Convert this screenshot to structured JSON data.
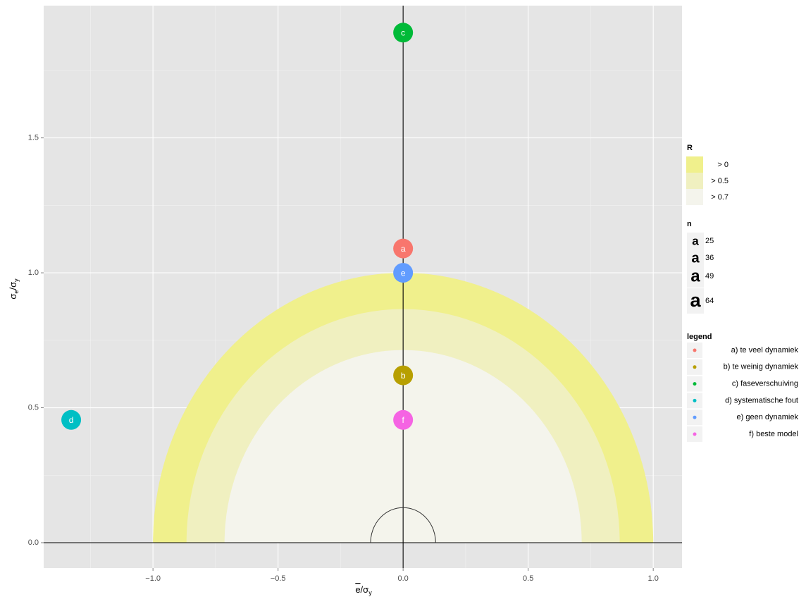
{
  "chart_data": {
    "type": "scatter",
    "x_label": [
      "e",
      "/σ",
      "y"
    ],
    "y_label": [
      "σ",
      "e",
      "/σ",
      "y"
    ],
    "xlim": [
      -1.437,
      1.115
    ],
    "ylim": [
      -0.094,
      1.99
    ],
    "xticks": [
      {
        "value": -1.0,
        "label": "−1.0"
      },
      {
        "value": -0.5,
        "label": "−0.5"
      },
      {
        "value": 0.0,
        "label": "0.0"
      },
      {
        "value": 0.5,
        "label": "0.5"
      },
      {
        "value": 1.0,
        "label": "1.0"
      }
    ],
    "yticks": [
      {
        "value": 0.0,
        "label": "0.0"
      },
      {
        "value": 0.5,
        "label": "0.5"
      },
      {
        "value": 1.0,
        "label": "1.0"
      },
      {
        "value": 1.5,
        "label": "1.5"
      }
    ],
    "grid": true,
    "circle_radius": 0.13,
    "fill_legend": {
      "title": "R",
      "entries": [
        {
          "label": "> 0",
          "color": "#f0f08c",
          "radius": 1.0
        },
        {
          "label": "> 0.5",
          "color": "#f0f0c0",
          "radius": 0.866
        },
        {
          "label": "> 0.7",
          "color": "#f4f4ec",
          "radius": 0.714
        }
      ]
    },
    "size_legend": {
      "title": "n",
      "glyph": "a",
      "values": [
        25,
        36,
        49,
        64
      ]
    },
    "color_legend_title": "legend",
    "series": [
      {
        "name": "a) te veel dynamiek",
        "label": "a",
        "color": "#F8766D",
        "x": [
          0.0
        ],
        "values": [
          1.09
        ]
      },
      {
        "name": "b) te weinig dynamiek",
        "label": "b",
        "color": "#B79F00",
        "x": [
          0.0
        ],
        "values": [
          0.62
        ]
      },
      {
        "name": "c) faseverschuiving",
        "label": "c",
        "color": "#00BA38",
        "x": [
          0.0
        ],
        "values": [
          1.89
        ]
      },
      {
        "name": "d) systematische fout",
        "label": "d",
        "color": "#00BFC4",
        "x": [
          -1.327
        ],
        "values": [
          0.455
        ]
      },
      {
        "name": "e) geen dynamiek",
        "label": "e",
        "color": "#619CFF",
        "x": [
          0.0
        ],
        "values": [
          1.0
        ]
      },
      {
        "name": "f) beste model",
        "label": "f",
        "color": "#F564E3",
        "x": [
          0.0
        ],
        "values": [
          0.455
        ]
      }
    ]
  }
}
